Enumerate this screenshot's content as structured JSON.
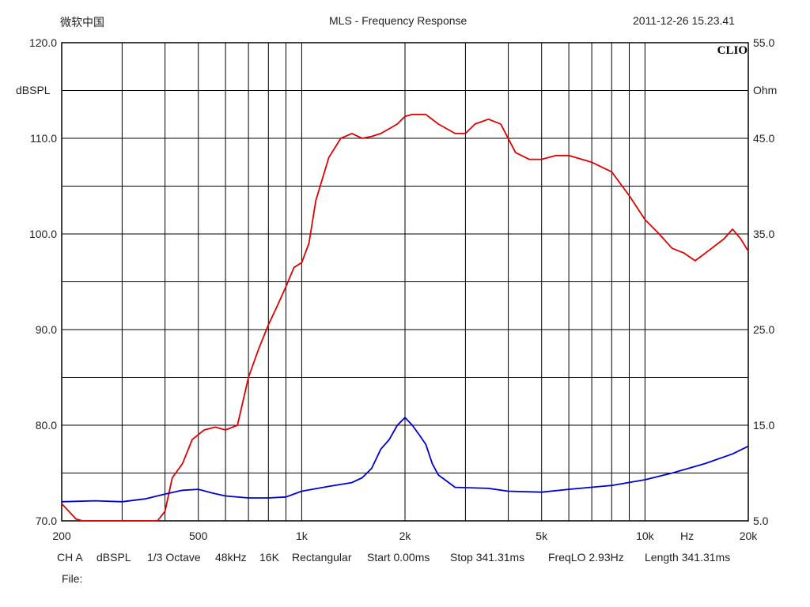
{
  "header": {
    "app": "微软中国",
    "title": "MLS - Frequency Response",
    "timestamp": "2011-12-26 15.23.41",
    "logo": "CLIO"
  },
  "footer": {
    "channel": "CH A",
    "unit": "dBSPL",
    "smoothing": "1/3 Octave",
    "sample_rate": "48kHz",
    "size": "16K",
    "window": "Rectangular",
    "start": "Start 0.00ms",
    "stop": "Stop 341.31ms",
    "freqlo": "FreqLO 2.93Hz",
    "length": "Length 341.31ms",
    "file_label": "File:"
  },
  "colors": {
    "spl": "#e00000",
    "impedance": "#0000d0",
    "grid": "#000000"
  },
  "chart_data": {
    "type": "line",
    "title": "MLS - Frequency Response",
    "xlabel": "Hz",
    "ylabel": "dBSPL",
    "y2label": "Ohm",
    "x_scale": "log",
    "xlim": [
      200,
      20000
    ],
    "ylim": [
      70,
      120
    ],
    "y2lim": [
      5,
      55
    ],
    "grid": true,
    "x_tick_labels": [
      {
        "v": 200,
        "t": "200"
      },
      {
        "v": 500,
        "t": "500"
      },
      {
        "v": 1000,
        "t": "1k"
      },
      {
        "v": 2000,
        "t": "2k"
      },
      {
        "v": 5000,
        "t": "5k"
      },
      {
        "v": 10000,
        "t": "10k"
      },
      {
        "v": 20000,
        "t": "20k"
      }
    ],
    "y_tick_labels": [
      "70.0",
      "80.0",
      "90.0",
      "100.0",
      "110.0",
      "120.0"
    ],
    "y2_tick_labels": [
      "5.0",
      "15.0",
      "25.0",
      "35.0",
      "45.0",
      "55.0"
    ],
    "series": [
      {
        "name": "dBSPL",
        "axis": "left",
        "x": [
          200,
          220,
          230,
          380,
          400,
          420,
          450,
          480,
          520,
          560,
          600,
          650,
          700,
          750,
          800,
          850,
          900,
          950,
          1000,
          1050,
          1100,
          1200,
          1300,
          1400,
          1500,
          1600,
          1700,
          1800,
          1900,
          2000,
          2100,
          2300,
          2500,
          2800,
          3000,
          3200,
          3500,
          3800,
          4200,
          4600,
          5000,
          5500,
          6000,
          7000,
          8000,
          9000,
          10000,
          11000,
          12000,
          13000,
          14000,
          15000,
          17000,
          18000,
          19000,
          20000
        ],
        "y": [
          71.8,
          70.2,
          69.5,
          70.0,
          71.0,
          74.5,
          76.0,
          78.5,
          79.5,
          79.8,
          79.5,
          80.0,
          85.0,
          88.0,
          90.5,
          92.5,
          94.5,
          96.5,
          97.0,
          99.0,
          103.5,
          108.0,
          110.0,
          110.5,
          110.0,
          110.2,
          110.5,
          111.0,
          111.5,
          112.3,
          112.5,
          112.5,
          111.5,
          110.5,
          110.5,
          111.5,
          112.0,
          111.5,
          108.5,
          107.8,
          107.8,
          108.2,
          108.2,
          107.5,
          106.5,
          104.0,
          101.5,
          100.0,
          98.5,
          98.0,
          97.2,
          98.0,
          99.5,
          100.5,
          99.5,
          98.2
        ]
      },
      {
        "name": "Ohm",
        "axis": "right",
        "x": [
          200,
          250,
          300,
          350,
          400,
          450,
          500,
          550,
          600,
          700,
          800,
          900,
          1000,
          1200,
          1400,
          1500,
          1600,
          1700,
          1800,
          1900,
          2000,
          2100,
          2200,
          2300,
          2400,
          2500,
          2800,
          3500,
          4000,
          5000,
          6000,
          8000,
          10000,
          12000,
          15000,
          18000,
          20000
        ],
        "y": [
          7.0,
          7.1,
          7.0,
          7.3,
          7.8,
          8.2,
          8.3,
          7.9,
          7.6,
          7.4,
          7.4,
          7.5,
          8.1,
          8.6,
          9.0,
          9.5,
          10.5,
          12.5,
          13.5,
          15.0,
          15.8,
          15.0,
          14.0,
          13.0,
          11.0,
          9.8,
          8.5,
          8.4,
          8.1,
          8.0,
          8.3,
          8.7,
          9.3,
          10.0,
          11.0,
          12.0,
          12.8
        ]
      }
    ]
  }
}
